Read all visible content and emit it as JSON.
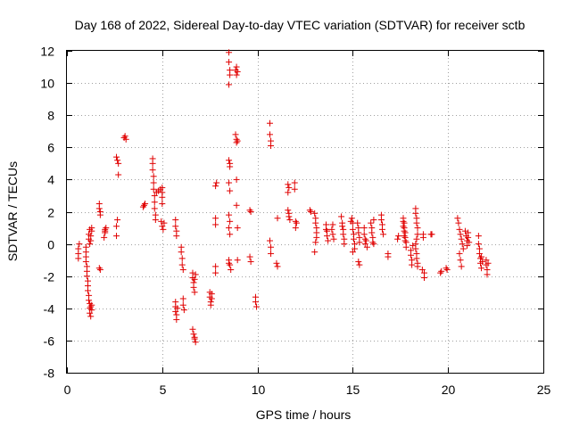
{
  "chart_data": {
    "type": "scatter",
    "title": "Day 168 of 2022, Sidereal Day-to-day VTEC variation (SDTVAR) for receiver sctb",
    "xlabel": "GPS time / hours",
    "ylabel": "SDTVAR / TECUs",
    "xlim": [
      0,
      25
    ],
    "ylim": [
      -8,
      12
    ],
    "xticks": [
      0,
      5,
      10,
      15,
      20,
      25
    ],
    "yticks": [
      -8,
      -6,
      -4,
      -2,
      0,
      2,
      4,
      6,
      8,
      10,
      12
    ],
    "grid": true,
    "marker": "plus",
    "color": "#e00000",
    "series": [
      {
        "name": "SDTVAR",
        "points": [
          [
            0.6,
            -0.3
          ],
          [
            0.6,
            -0.6
          ],
          [
            0.6,
            -0.9
          ],
          [
            0.65,
            0.0
          ],
          [
            1.0,
            -0.2
          ],
          [
            1.0,
            -0.5
          ],
          [
            1.0,
            -0.8
          ],
          [
            1.0,
            -1.1
          ],
          [
            1.05,
            -1.4
          ],
          [
            1.05,
            -1.7
          ],
          [
            1.05,
            -2.0
          ],
          [
            1.1,
            -2.3
          ],
          [
            1.1,
            -2.6
          ],
          [
            1.1,
            -2.9
          ],
          [
            1.15,
            -3.2
          ],
          [
            1.15,
            -3.5
          ],
          [
            1.2,
            -3.7
          ],
          [
            1.2,
            -4.0
          ],
          [
            1.2,
            -4.3
          ],
          [
            1.25,
            -4.5
          ],
          [
            1.25,
            -3.9
          ],
          [
            1.3,
            -3.8
          ],
          [
            1.3,
            -4.1
          ],
          [
            1.15,
            0.3
          ],
          [
            1.15,
            0.6
          ],
          [
            1.2,
            0.9
          ],
          [
            1.2,
            0.0
          ],
          [
            1.25,
            0.2
          ],
          [
            1.25,
            0.5
          ],
          [
            1.3,
            0.8
          ],
          [
            1.3,
            1.0
          ],
          [
            1.7,
            -1.5
          ],
          [
            1.75,
            -1.6
          ],
          [
            1.7,
            2.5
          ],
          [
            1.7,
            2.2
          ],
          [
            1.75,
            2.0
          ],
          [
            1.75,
            1.8
          ],
          [
            1.95,
            0.4
          ],
          [
            2.0,
            0.7
          ],
          [
            2.0,
            0.9
          ],
          [
            2.05,
            1.0
          ],
          [
            2.0,
            0.8
          ],
          [
            2.6,
            1.1
          ],
          [
            2.65,
            1.5
          ],
          [
            2.6,
            0.5
          ],
          [
            2.6,
            5.4
          ],
          [
            2.65,
            5.2
          ],
          [
            2.7,
            5.0
          ],
          [
            2.7,
            4.3
          ],
          [
            3.0,
            6.6
          ],
          [
            3.05,
            6.7
          ],
          [
            3.1,
            6.5
          ],
          [
            4.0,
            2.3
          ],
          [
            4.05,
            2.4
          ],
          [
            4.1,
            2.5
          ],
          [
            4.5,
            5.3
          ],
          [
            4.5,
            5.0
          ],
          [
            4.5,
            4.6
          ],
          [
            4.55,
            4.2
          ],
          [
            4.55,
            3.8
          ],
          [
            4.55,
            3.4
          ],
          [
            4.6,
            3.0
          ],
          [
            4.6,
            2.6
          ],
          [
            4.6,
            2.2
          ],
          [
            4.65,
            1.8
          ],
          [
            4.65,
            1.5
          ],
          [
            4.7,
            3.2
          ],
          [
            4.8,
            3.3
          ],
          [
            4.9,
            3.4
          ],
          [
            5.0,
            3.5
          ],
          [
            5.0,
            3.2
          ],
          [
            5.0,
            2.9
          ],
          [
            5.0,
            2.5
          ],
          [
            4.95,
            1.4
          ],
          [
            5.0,
            1.1
          ],
          [
            5.05,
            0.9
          ],
          [
            5.1,
            1.3
          ],
          [
            5.7,
            1.5
          ],
          [
            5.7,
            1.1
          ],
          [
            5.75,
            0.8
          ],
          [
            5.75,
            0.5
          ],
          [
            5.7,
            -3.6
          ],
          [
            5.7,
            -3.9
          ],
          [
            5.7,
            -4.2
          ],
          [
            5.75,
            -4.4
          ],
          [
            5.75,
            -4.7
          ],
          [
            5.8,
            -4.0
          ],
          [
            6.0,
            -0.2
          ],
          [
            6.0,
            -0.5
          ],
          [
            6.05,
            -0.9
          ],
          [
            6.05,
            -1.3
          ],
          [
            6.1,
            -1.6
          ],
          [
            6.1,
            -3.4
          ],
          [
            6.1,
            -3.8
          ],
          [
            6.15,
            -4.1
          ],
          [
            6.6,
            -1.8
          ],
          [
            6.6,
            -2.1
          ],
          [
            6.65,
            -2.4
          ],
          [
            6.65,
            -2.7
          ],
          [
            6.7,
            -3.0
          ],
          [
            6.7,
            -2.2
          ],
          [
            6.75,
            -1.9
          ],
          [
            6.6,
            -5.3
          ],
          [
            6.65,
            -5.6
          ],
          [
            6.7,
            -5.9
          ],
          [
            6.75,
            -6.1
          ],
          [
            6.7,
            -5.8
          ],
          [
            7.5,
            -3.0
          ],
          [
            7.5,
            -3.3
          ],
          [
            7.55,
            -3.6
          ],
          [
            7.55,
            -3.8
          ],
          [
            7.6,
            -3.4
          ],
          [
            7.6,
            -3.1
          ],
          [
            7.8,
            -1.4
          ],
          [
            7.8,
            -1.8
          ],
          [
            7.8,
            1.2
          ],
          [
            7.8,
            1.6
          ],
          [
            7.8,
            3.6
          ],
          [
            7.85,
            3.8
          ],
          [
            8.5,
            11.9
          ],
          [
            8.5,
            11.3
          ],
          [
            8.55,
            10.8
          ],
          [
            8.55,
            10.5
          ],
          [
            8.5,
            9.9
          ],
          [
            8.5,
            5.2
          ],
          [
            8.55,
            4.8
          ],
          [
            8.55,
            5.0
          ],
          [
            8.5,
            3.8
          ],
          [
            8.55,
            3.3
          ],
          [
            8.5,
            1.8
          ],
          [
            8.55,
            1.4
          ],
          [
            8.5,
            1.0
          ],
          [
            8.55,
            0.6
          ],
          [
            8.5,
            -1.0
          ],
          [
            8.55,
            -1.3
          ],
          [
            8.6,
            -1.6
          ],
          [
            8.5,
            -1.2
          ],
          [
            8.85,
            10.8
          ],
          [
            8.9,
            10.5
          ],
          [
            8.9,
            11.0
          ],
          [
            8.95,
            10.7
          ],
          [
            8.85,
            6.8
          ],
          [
            8.9,
            6.5
          ],
          [
            8.9,
            6.3
          ],
          [
            8.95,
            6.4
          ],
          [
            8.9,
            4.0
          ],
          [
            8.9,
            2.4
          ],
          [
            8.95,
            1.0
          ],
          [
            8.95,
            -1.0
          ],
          [
            9.6,
            2.1
          ],
          [
            9.65,
            2.0
          ],
          [
            9.6,
            -0.8
          ],
          [
            9.65,
            -1.1
          ],
          [
            9.9,
            -3.3
          ],
          [
            9.9,
            -3.6
          ],
          [
            9.95,
            -3.9
          ],
          [
            10.65,
            7.5
          ],
          [
            10.65,
            6.8
          ],
          [
            10.7,
            6.4
          ],
          [
            10.7,
            6.1
          ],
          [
            10.65,
            0.2
          ],
          [
            10.7,
            -0.2
          ],
          [
            10.7,
            -0.6
          ],
          [
            11.0,
            -1.2
          ],
          [
            11.05,
            -1.4
          ],
          [
            11.05,
            1.6
          ],
          [
            11.6,
            3.7
          ],
          [
            11.65,
            3.5
          ],
          [
            11.6,
            3.2
          ],
          [
            11.6,
            2.1
          ],
          [
            11.65,
            1.9
          ],
          [
            11.65,
            1.7
          ],
          [
            11.7,
            1.5
          ],
          [
            11.95,
            3.8
          ],
          [
            11.95,
            3.4
          ],
          [
            12.0,
            1.4
          ],
          [
            12.0,
            1.0
          ],
          [
            12.05,
            1.3
          ],
          [
            12.75,
            2.1
          ],
          [
            12.8,
            2.0
          ],
          [
            13.0,
            1.9
          ],
          [
            13.05,
            1.6
          ],
          [
            13.05,
            1.3
          ],
          [
            13.1,
            1.0
          ],
          [
            13.1,
            0.7
          ],
          [
            13.1,
            0.4
          ],
          [
            13.05,
            0.1
          ],
          [
            13.0,
            -0.5
          ],
          [
            13.6,
            0.9
          ],
          [
            13.6,
            1.2
          ],
          [
            13.65,
            0.8
          ],
          [
            13.65,
            0.5
          ],
          [
            13.7,
            0.2
          ],
          [
            13.9,
            0.9
          ],
          [
            13.95,
            1.2
          ],
          [
            13.95,
            0.6
          ],
          [
            14.0,
            0.3
          ],
          [
            14.4,
            1.7
          ],
          [
            14.45,
            1.3
          ],
          [
            14.45,
            1.1
          ],
          [
            14.5,
            0.9
          ],
          [
            14.5,
            0.6
          ],
          [
            14.55,
            0.3
          ],
          [
            14.55,
            0.0
          ],
          [
            14.9,
            1.4
          ],
          [
            14.95,
            1.6
          ],
          [
            15.0,
            1.3
          ],
          [
            15.0,
            0.9
          ],
          [
            15.05,
            0.6
          ],
          [
            15.05,
            0.3
          ],
          [
            15.1,
            0.0
          ],
          [
            15.1,
            -0.3
          ],
          [
            15.0,
            -0.5
          ],
          [
            15.25,
            1.3
          ],
          [
            15.3,
            1.0
          ],
          [
            15.3,
            0.7
          ],
          [
            15.35,
            0.4
          ],
          [
            15.35,
            0.1
          ],
          [
            15.3,
            -1.1
          ],
          [
            15.35,
            -1.3
          ],
          [
            15.6,
            1.0
          ],
          [
            15.6,
            0.6
          ],
          [
            15.65,
            0.3
          ],
          [
            15.65,
            0.0
          ],
          [
            15.7,
            0.2
          ],
          [
            15.75,
            -0.2
          ],
          [
            15.95,
            1.3
          ],
          [
            16.0,
            1.0
          ],
          [
            16.0,
            0.7
          ],
          [
            16.05,
            0.4
          ],
          [
            16.05,
            0.1
          ],
          [
            16.1,
            1.5
          ],
          [
            16.1,
            0.0
          ],
          [
            16.5,
            1.8
          ],
          [
            16.5,
            1.5
          ],
          [
            16.55,
            1.2
          ],
          [
            16.55,
            0.9
          ],
          [
            16.6,
            0.6
          ],
          [
            16.85,
            -0.6
          ],
          [
            16.85,
            -0.8
          ],
          [
            17.35,
            0.3
          ],
          [
            17.4,
            0.5
          ],
          [
            17.65,
            1.4
          ],
          [
            17.65,
            1.1
          ],
          [
            17.7,
            0.8
          ],
          [
            17.7,
            0.5
          ],
          [
            17.75,
            0.2
          ],
          [
            17.65,
            1.6
          ],
          [
            17.7,
            1.3
          ],
          [
            17.7,
            1.0
          ],
          [
            17.75,
            0.7
          ],
          [
            17.75,
            0.4
          ],
          [
            17.8,
            0.1
          ],
          [
            17.8,
            -0.2
          ],
          [
            18.05,
            -0.4
          ],
          [
            18.05,
            -0.7
          ],
          [
            18.1,
            -1.0
          ],
          [
            18.1,
            -1.3
          ],
          [
            18.15,
            -0.1
          ],
          [
            18.3,
            2.2
          ],
          [
            18.3,
            1.9
          ],
          [
            18.35,
            1.6
          ],
          [
            18.35,
            1.3
          ],
          [
            18.4,
            1.0
          ],
          [
            18.4,
            0.6
          ],
          [
            18.35,
            0.3
          ],
          [
            18.3,
            0.0
          ],
          [
            18.3,
            -0.3
          ],
          [
            18.35,
            -0.6
          ],
          [
            18.35,
            -0.9
          ],
          [
            18.4,
            -1.2
          ],
          [
            18.4,
            -1.4
          ],
          [
            18.7,
            0.6
          ],
          [
            18.7,
            0.4
          ],
          [
            18.75,
            -1.8
          ],
          [
            18.75,
            -2.1
          ],
          [
            18.65,
            -1.6
          ],
          [
            19.1,
            0.6
          ],
          [
            19.15,
            0.6
          ],
          [
            19.6,
            -1.8
          ],
          [
            19.65,
            -1.7
          ],
          [
            19.9,
            -1.5
          ],
          [
            19.95,
            -1.6
          ],
          [
            20.5,
            1.6
          ],
          [
            20.55,
            1.3
          ],
          [
            20.6,
            0.9
          ],
          [
            20.65,
            0.6
          ],
          [
            20.7,
            0.3
          ],
          [
            20.75,
            0.0
          ],
          [
            20.8,
            -0.3
          ],
          [
            20.6,
            -0.6
          ],
          [
            20.65,
            -1.0
          ],
          [
            20.7,
            -1.4
          ],
          [
            20.9,
            0.8
          ],
          [
            20.95,
            0.5
          ],
          [
            21.0,
            0.2
          ],
          [
            21.0,
            -0.1
          ],
          [
            21.05,
            0.4
          ],
          [
            21.05,
            0.7
          ],
          [
            21.1,
            0.1
          ],
          [
            21.6,
            0.5
          ],
          [
            21.6,
            0.0
          ],
          [
            21.65,
            -0.3
          ],
          [
            21.65,
            -0.6
          ],
          [
            21.7,
            -0.9
          ],
          [
            21.7,
            -1.2
          ],
          [
            21.75,
            -1.5
          ],
          [
            21.75,
            -0.8
          ],
          [
            21.8,
            -1.1
          ],
          [
            22.0,
            -1.0
          ],
          [
            22.0,
            -1.3
          ],
          [
            22.05,
            -1.6
          ],
          [
            22.05,
            -1.9
          ],
          [
            22.1,
            -1.2
          ]
        ]
      }
    ]
  }
}
